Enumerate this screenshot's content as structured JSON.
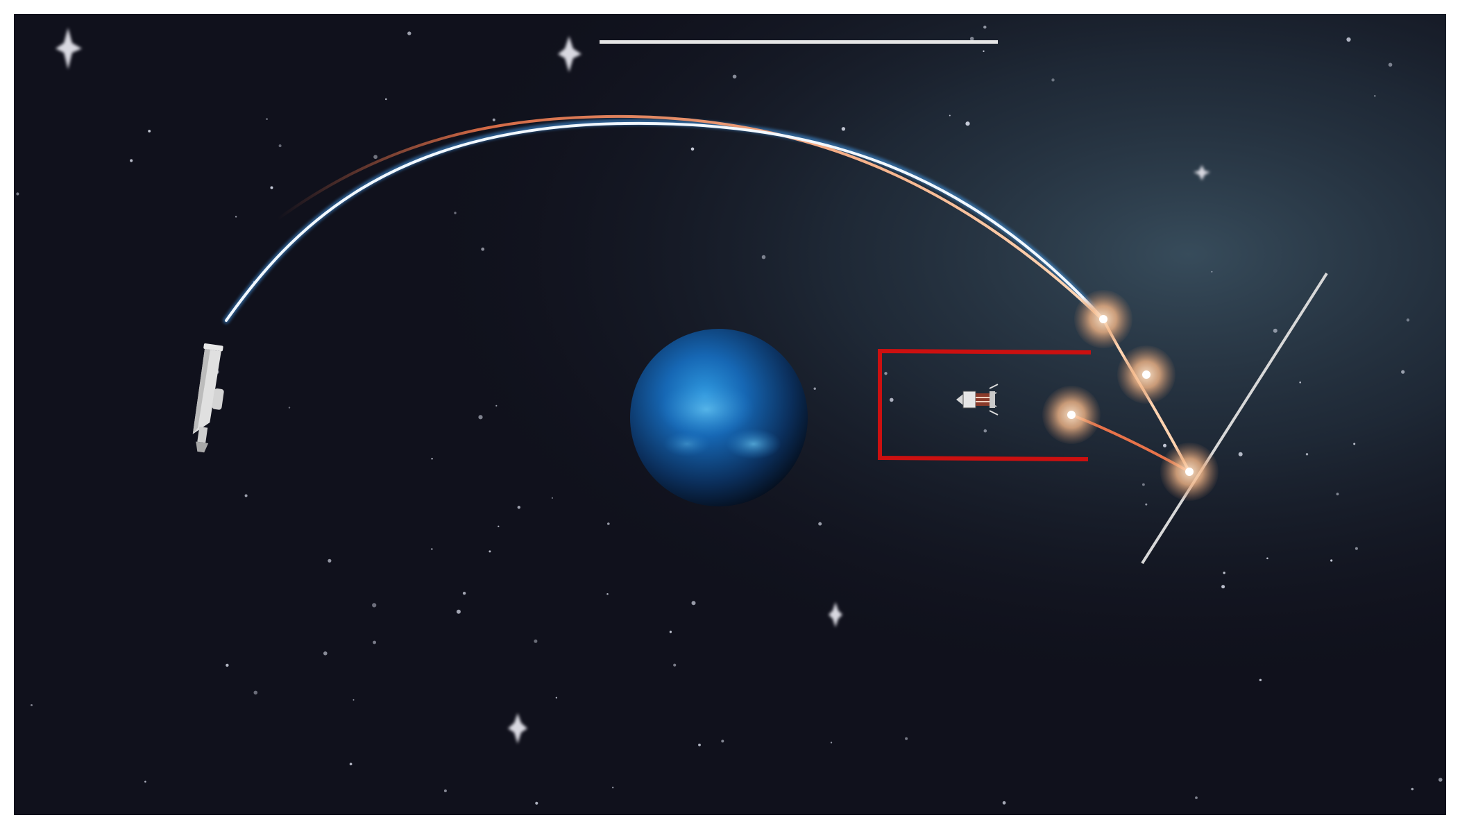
{
  "scene": {
    "type": "space-orbit-game",
    "colors": {
      "background": "#10111c",
      "frame": "#ffffff",
      "planet_core": "#1a78c8",
      "planet_edge": "#061424",
      "target_box": "#cc1010",
      "trajectory_white": "#e8f4ff",
      "trajectory_blue": "#4aa8ff",
      "trajectory_orange": "#e8734a",
      "node_glow": "#f0b58a",
      "progress_bar": "#e6e6e6",
      "aim_line": "#d8d8d8"
    },
    "icons": {
      "player_ship": "rocket-icon",
      "target_ship": "spacecraft-icon",
      "planet": "planet-icon",
      "star": "star-icon",
      "node": "waypoint-icon"
    }
  }
}
